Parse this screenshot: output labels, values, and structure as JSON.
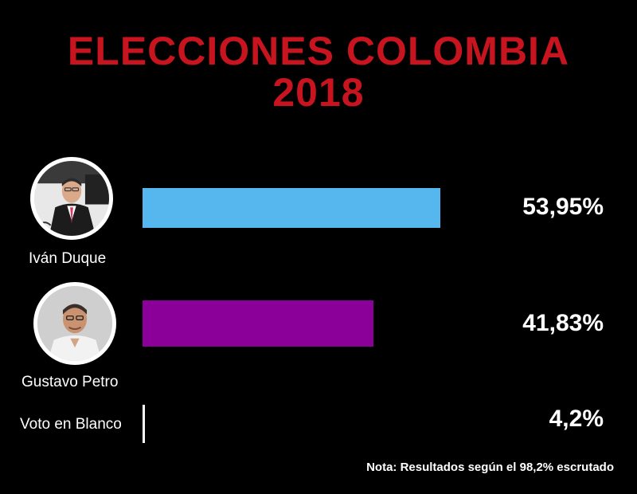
{
  "chart_data": {
    "type": "bar",
    "orientation": "horizontal",
    "title": "ELECCIONES COLOMBIA 2018",
    "title_lines": [
      "ELECCIONES COLOMBIA",
      "2018"
    ],
    "categories": [
      "Iván Duque",
      "Gustavo Petro",
      "Voto en Blanco"
    ],
    "values": [
      53.95,
      41.83,
      4.2
    ],
    "value_labels": [
      "53,95%",
      "41,83%",
      "4,2%"
    ],
    "colors": [
      "#56b7ee",
      "#8a0099",
      "#ffffff"
    ],
    "xlim": [
      0,
      100
    ],
    "unit": "%",
    "note": "Nota: Resultados según el 98,2% escrutado",
    "grid": false,
    "legend": "none"
  },
  "candidates": [
    {
      "name": "Iván Duque",
      "photo_icon": "candidate-photo-icon"
    },
    {
      "name": "Gustavo Petro",
      "photo_icon": "candidate-photo-icon"
    }
  ],
  "theme": {
    "background": "#000000",
    "title_color": "#c8141e",
    "text_color": "#ffffff"
  }
}
